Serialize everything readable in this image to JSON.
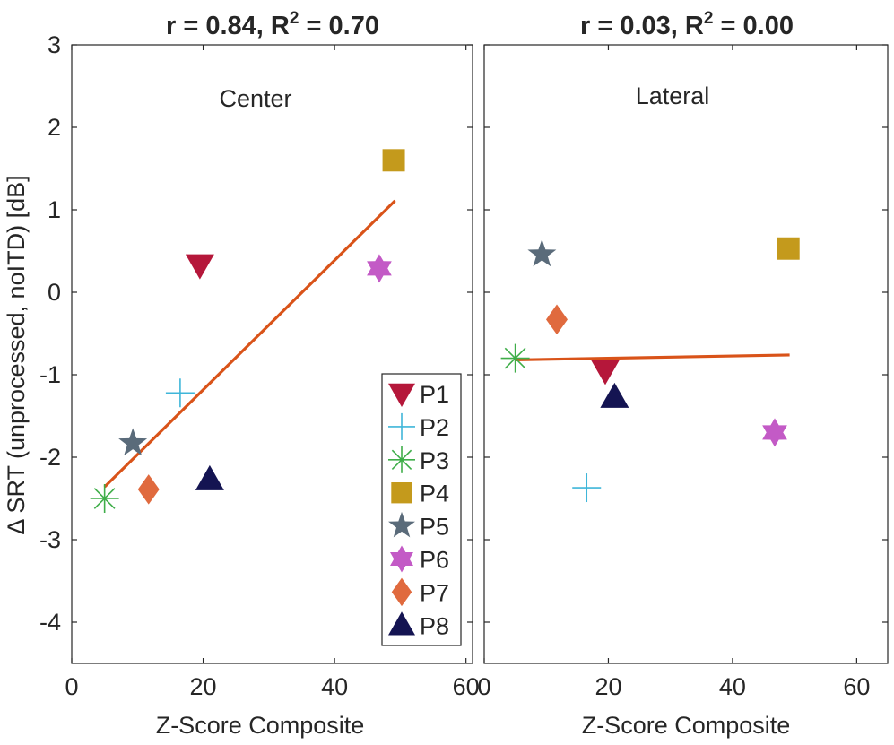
{
  "chart_data": [
    {
      "type": "scatter",
      "title": "r = 0.84, R",
      "title_sup": "2",
      "title_tail": " = 0.70",
      "annotation": "Center",
      "xlabel": "Z-Score Composite",
      "ylabel": "Δ SRT (unprocessed, noITD) [dB]",
      "xlim": [
        0,
        61
      ],
      "ylim": [
        -4.5,
        3
      ],
      "xticks": [
        0,
        20,
        40,
        60
      ],
      "yticks": [
        -4,
        -3,
        -2,
        -1,
        0,
        1,
        2,
        3
      ],
      "series": [
        {
          "name": "P1",
          "x": 19.5,
          "y": 0.33
        },
        {
          "name": "P2",
          "x": 16.5,
          "y": -1.22
        },
        {
          "name": "P3",
          "x": 5.0,
          "y": -2.5
        },
        {
          "name": "P4",
          "x": 49.0,
          "y": 1.6
        },
        {
          "name": "P5",
          "x": 9.3,
          "y": -1.83
        },
        {
          "name": "P6",
          "x": 46.8,
          "y": 0.29
        },
        {
          "name": "P7",
          "x": 11.7,
          "y": -2.39
        },
        {
          "name": "P8",
          "x": 21.0,
          "y": -2.27
        }
      ],
      "fit_line": {
        "x": [
          5.0,
          49.2
        ],
        "y": [
          -2.36,
          1.11
        ]
      }
    },
    {
      "type": "scatter",
      "title": "r = 0.03, R",
      "title_sup": "2",
      "title_tail": " = 0.00",
      "annotation": "Lateral",
      "xlabel": "Z-Score Composite",
      "ylabel": "",
      "xlim": [
        0,
        65
      ],
      "ylim": [
        -4.5,
        3
      ],
      "xticks": [
        0,
        20,
        40,
        60
      ],
      "yticks": [
        -4,
        -3,
        -2,
        -1,
        0,
        1,
        2,
        3
      ],
      "series": [
        {
          "name": "P1",
          "x": 19.5,
          "y": -0.95
        },
        {
          "name": "P2",
          "x": 16.5,
          "y": -2.37
        },
        {
          "name": "P3",
          "x": 5.0,
          "y": -0.8
        },
        {
          "name": "P4",
          "x": 49.0,
          "y": 0.53
        },
        {
          "name": "P5",
          "x": 9.3,
          "y": 0.46
        },
        {
          "name": "P6",
          "x": 46.8,
          "y": -1.7
        },
        {
          "name": "P7",
          "x": 11.7,
          "y": -0.33
        },
        {
          "name": "P8",
          "x": 21.0,
          "y": -1.27
        }
      ],
      "fit_line": {
        "x": [
          5.0,
          49.2
        ],
        "y": [
          -0.82,
          -0.76
        ]
      }
    }
  ],
  "legend": {
    "placement": "inside-bottom-right of first panel",
    "entries": [
      {
        "label": "P1",
        "marker": "triangle-down",
        "color": "#b5173a"
      },
      {
        "label": "P2",
        "marker": "plus",
        "color": "#3fb6d9"
      },
      {
        "label": "P3",
        "marker": "asterisk",
        "color": "#3fae49"
      },
      {
        "label": "P4",
        "marker": "square",
        "color": "#c49a1c"
      },
      {
        "label": "P5",
        "marker": "star",
        "color": "#5a6b7a"
      },
      {
        "label": "P6",
        "marker": "hexagram",
        "color": "#c35ac6"
      },
      {
        "label": "P7",
        "marker": "diamond",
        "color": "#e06a3e"
      },
      {
        "label": "P8",
        "marker": "triangle-up",
        "color": "#141452"
      }
    ]
  },
  "fit_color": "#d95319"
}
